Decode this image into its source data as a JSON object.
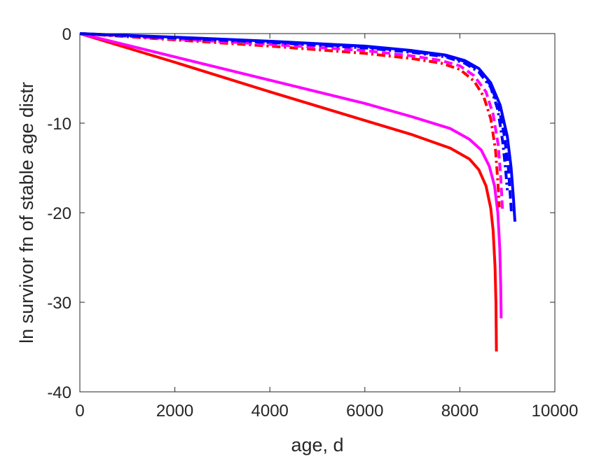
{
  "chart_data": {
    "type": "line",
    "xlabel": "age, d",
    "ylabel": "ln survivor fn of stable age distr",
    "xlim": [
      0,
      10000
    ],
    "ylim": [
      -40,
      0
    ],
    "xticks": [
      0,
      2000,
      4000,
      6000,
      8000,
      10000
    ],
    "yticks": [
      0,
      -10,
      -20,
      -30,
      -40
    ],
    "xtick_labels": [
      "0",
      "2000",
      "4000",
      "6000",
      "8000",
      "10000"
    ],
    "ytick_labels": [
      "0",
      "-10",
      "-20",
      "-30",
      "-40"
    ],
    "grid": false,
    "legend": "none",
    "series": [
      {
        "color": "#ff0000",
        "dash": "solid",
        "x": [
          0,
          2000,
          4000,
          6000,
          7000,
          7800,
          8200,
          8400,
          8550,
          8650,
          8700,
          8740,
          8760,
          8770
        ],
        "y": [
          0,
          -3.2,
          -6.5,
          -9.7,
          -11.3,
          -12.8,
          -14.0,
          -15.2,
          -17.0,
          -19.5,
          -22.0,
          -26.0,
          -30.0,
          -35.5
        ]
      },
      {
        "color": "#ff00ff",
        "dash": "solid",
        "x": [
          0,
          2000,
          4000,
          6000,
          7000,
          7800,
          8200,
          8450,
          8620,
          8730,
          8800,
          8840,
          8860,
          8870
        ],
        "y": [
          0,
          -2.6,
          -5.2,
          -7.8,
          -9.3,
          -10.6,
          -11.8,
          -13.0,
          -14.8,
          -17.0,
          -20.0,
          -24.0,
          -28.0,
          -31.8
        ]
      },
      {
        "color": "#ff0000",
        "dash": "dashdot",
        "x": [
          0,
          2000,
          4000,
          6000,
          7000,
          7600,
          8000,
          8300,
          8500,
          8650,
          8750,
          8800,
          8830
        ],
        "y": [
          0,
          -0.7,
          -1.4,
          -2.2,
          -2.8,
          -3.3,
          -4.0,
          -5.3,
          -7.0,
          -9.5,
          -13.0,
          -16.5,
          -19.4
        ]
      },
      {
        "color": "#ff00ff",
        "dash": "dashed",
        "x": [
          0,
          2000,
          4000,
          6000,
          7000,
          7600,
          8000,
          8300,
          8550,
          8700,
          8810,
          8860,
          8900
        ],
        "y": [
          0,
          -0.6,
          -1.2,
          -1.9,
          -2.5,
          -3.0,
          -3.6,
          -4.7,
          -6.5,
          -9.0,
          -12.5,
          -16.0,
          -19.8
        ]
      },
      {
        "color": "#0000ff",
        "dash": "dashdot",
        "x": [
          0,
          2000,
          4000,
          6000,
          7000,
          7700,
          8100,
          8400,
          8650,
          8800,
          8900,
          8960,
          9000
        ],
        "y": [
          0,
          -0.5,
          -1.0,
          -1.6,
          -2.1,
          -2.6,
          -3.3,
          -4.3,
          -6.0,
          -8.5,
          -12.0,
          -15.0,
          -17.5
        ]
      },
      {
        "color": "#0000ff",
        "dash": "dashed",
        "x": [
          0,
          2000,
          4000,
          6000,
          7000,
          7700,
          8100,
          8400,
          8650,
          8820,
          8940,
          9020,
          9060,
          9090
        ],
        "y": [
          0,
          -0.45,
          -0.9,
          -1.5,
          -2.0,
          -2.5,
          -3.1,
          -4.1,
          -5.8,
          -8.2,
          -11.5,
          -15.0,
          -18.0,
          -20.3
        ]
      },
      {
        "color": "#0000ff",
        "dash": "solid",
        "x": [
          0,
          2000,
          4000,
          6000,
          7000,
          7700,
          8100,
          8400,
          8650,
          8850,
          9000,
          9080,
          9130,
          9160
        ],
        "y": [
          0,
          -0.4,
          -0.85,
          -1.4,
          -1.9,
          -2.4,
          -3.0,
          -3.9,
          -5.5,
          -8.0,
          -11.5,
          -15.0,
          -18.5,
          -21.0
        ]
      }
    ]
  }
}
